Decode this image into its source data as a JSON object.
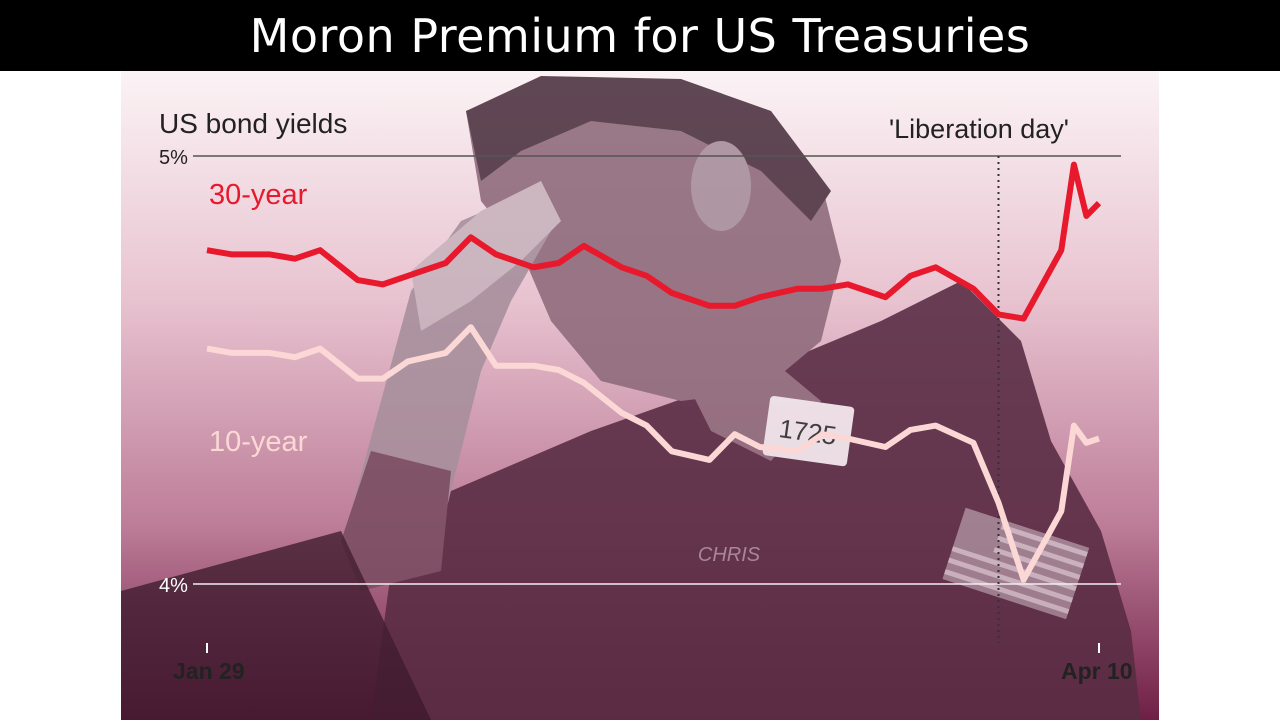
{
  "slide": {
    "title": "Moron Premium for US Treasuries"
  },
  "chart_data": {
    "type": "line",
    "title": "US bond yields",
    "annotation": "'Liberation day'",
    "annotation_date": "2025-04-02",
    "x_start_label": "Jan 29",
    "x_end_label": "Apr 10",
    "x_range": [
      "2025-01-29",
      "2025-04-10"
    ],
    "ylim": [
      3.88,
      5.05
    ],
    "y_ticks": [
      {
        "value": 5,
        "label": "5%"
      },
      {
        "value": 4,
        "label": "4%"
      }
    ],
    "series": [
      {
        "name": "30-year",
        "color": "#e8192c",
        "points": [
          [
            "2025-01-29",
            4.78
          ],
          [
            "2025-01-31",
            4.77
          ],
          [
            "2025-02-03",
            4.77
          ],
          [
            "2025-02-05",
            4.76
          ],
          [
            "2025-02-07",
            4.78
          ],
          [
            "2025-02-10",
            4.71
          ],
          [
            "2025-02-12",
            4.7
          ],
          [
            "2025-02-14",
            4.72
          ],
          [
            "2025-02-17",
            4.75
          ],
          [
            "2025-02-19",
            4.81
          ],
          [
            "2025-02-21",
            4.77
          ],
          [
            "2025-02-24",
            4.74
          ],
          [
            "2025-02-26",
            4.75
          ],
          [
            "2025-02-28",
            4.79
          ],
          [
            "2025-03-03",
            4.74
          ],
          [
            "2025-03-05",
            4.72
          ],
          [
            "2025-03-07",
            4.68
          ],
          [
            "2025-03-10",
            4.65
          ],
          [
            "2025-03-12",
            4.65
          ],
          [
            "2025-03-14",
            4.67
          ],
          [
            "2025-03-17",
            4.69
          ],
          [
            "2025-03-19",
            4.69
          ],
          [
            "2025-03-21",
            4.7
          ],
          [
            "2025-03-24",
            4.67
          ],
          [
            "2025-03-26",
            4.72
          ],
          [
            "2025-03-28",
            4.74
          ],
          [
            "2025-03-31",
            4.69
          ],
          [
            "2025-04-02",
            4.63
          ],
          [
            "2025-04-04",
            4.62
          ],
          [
            "2025-04-07",
            4.78
          ],
          [
            "2025-04-08",
            4.98
          ],
          [
            "2025-04-09",
            4.86
          ],
          [
            "2025-04-10",
            4.89
          ]
        ]
      },
      {
        "name": "10-year",
        "color": "#fbd8d6",
        "points": [
          [
            "2025-01-29",
            4.55
          ],
          [
            "2025-01-31",
            4.54
          ],
          [
            "2025-02-03",
            4.54
          ],
          [
            "2025-02-05",
            4.53
          ],
          [
            "2025-02-07",
            4.55
          ],
          [
            "2025-02-10",
            4.48
          ],
          [
            "2025-02-12",
            4.48
          ],
          [
            "2025-02-14",
            4.52
          ],
          [
            "2025-02-17",
            4.54
          ],
          [
            "2025-02-19",
            4.6
          ],
          [
            "2025-02-21",
            4.51
          ],
          [
            "2025-02-24",
            4.51
          ],
          [
            "2025-02-26",
            4.5
          ],
          [
            "2025-02-28",
            4.47
          ],
          [
            "2025-03-03",
            4.4
          ],
          [
            "2025-03-05",
            4.37
          ],
          [
            "2025-03-07",
            4.31
          ],
          [
            "2025-03-10",
            4.29
          ],
          [
            "2025-03-12",
            4.35
          ],
          [
            "2025-03-14",
            4.32
          ],
          [
            "2025-03-17",
            4.31
          ],
          [
            "2025-03-19",
            4.35
          ],
          [
            "2025-03-21",
            4.34
          ],
          [
            "2025-03-24",
            4.32
          ],
          [
            "2025-03-26",
            4.36
          ],
          [
            "2025-03-28",
            4.37
          ],
          [
            "2025-03-31",
            4.33
          ],
          [
            "2025-04-02",
            4.19
          ],
          [
            "2025-04-04",
            4.01
          ],
          [
            "2025-04-07",
            4.17
          ],
          [
            "2025-04-08",
            4.37
          ],
          [
            "2025-04-09",
            4.33
          ],
          [
            "2025-04-10",
            4.34
          ]
        ]
      }
    ],
    "grid": false,
    "background_gradient": [
      "#fbf3f5",
      "#e8c3d0",
      "#bd7d98",
      "#6f1f45"
    ],
    "figure_colors": {
      "light": "#c8b3bc",
      "mid": "#8f6b7c",
      "dark": "#5a2d45",
      "skin": "#b29aa6"
    },
    "badge_text": "1725",
    "name_tag": "CHRIS",
    "label_color": "#222222"
  }
}
